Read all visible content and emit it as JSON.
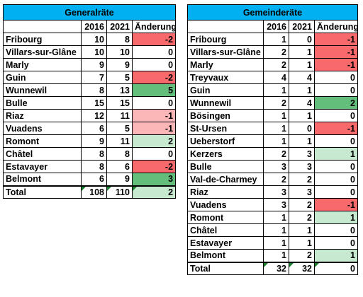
{
  "tables": [
    {
      "title": "Generalräte",
      "headers": [
        "",
        "2016",
        "2021",
        "Änderung"
      ],
      "rows": [
        {
          "name": "Fribourg",
          "y2016": "10",
          "y2021": "8",
          "change": "-2",
          "tone": "neg-strong"
        },
        {
          "name": "Villars-sur-Glâne",
          "y2016": "10",
          "y2021": "10",
          "change": "0",
          "tone": ""
        },
        {
          "name": "Marly",
          "y2016": "9",
          "y2021": "9",
          "change": "0",
          "tone": ""
        },
        {
          "name": "Guin",
          "y2016": "7",
          "y2021": "5",
          "change": "-2",
          "tone": "neg-strong"
        },
        {
          "name": "Wunnewil",
          "y2016": "8",
          "y2021": "13",
          "change": "5",
          "tone": "pos-strong"
        },
        {
          "name": "Bulle",
          "y2016": "15",
          "y2021": "15",
          "change": "0",
          "tone": ""
        },
        {
          "name": "Riaz",
          "y2016": "12",
          "y2021": "11",
          "change": "-1",
          "tone": "neg-light"
        },
        {
          "name": "Vuadens",
          "y2016": "6",
          "y2021": "5",
          "change": "-1",
          "tone": "neg-light"
        },
        {
          "name": "Romont",
          "y2016": "9",
          "y2021": "11",
          "change": "2",
          "tone": "pos-light"
        },
        {
          "name": "Châtel",
          "y2016": "8",
          "y2021": "8",
          "change": "0",
          "tone": ""
        },
        {
          "name": "Estavayer",
          "y2016": "8",
          "y2021": "6",
          "change": "-2",
          "tone": "neg-strong"
        },
        {
          "name": "Belmont",
          "y2016": "6",
          "y2021": "9",
          "change": "3",
          "tone": "pos-strong"
        }
      ],
      "total": {
        "name": "Total",
        "y2016": "108",
        "y2021": "110",
        "change": "2",
        "tone": "pos-light"
      }
    },
    {
      "title": "Gemeinderäte",
      "headers": [
        "",
        "2016",
        "2021",
        "Änderung"
      ],
      "rows": [
        {
          "name": "Fribourg",
          "y2016": "1",
          "y2021": "0",
          "change": "-1",
          "tone": "neg-strong"
        },
        {
          "name": "Villars-sur-Glâne",
          "y2016": "2",
          "y2021": "1",
          "change": "-1",
          "tone": "neg-strong"
        },
        {
          "name": "Marly",
          "y2016": "2",
          "y2021": "1",
          "change": "-1",
          "tone": "neg-strong"
        },
        {
          "name": "Treyvaux",
          "y2016": "4",
          "y2021": "4",
          "change": "0",
          "tone": ""
        },
        {
          "name": "Guin",
          "y2016": "1",
          "y2021": "1",
          "change": "0",
          "tone": ""
        },
        {
          "name": "Wunnewil",
          "y2016": "2",
          "y2021": "4",
          "change": "2",
          "tone": "pos-strong"
        },
        {
          "name": "Bösingen",
          "y2016": "1",
          "y2021": "1",
          "change": "0",
          "tone": ""
        },
        {
          "name": "St-Ursen",
          "y2016": "1",
          "y2021": "0",
          "change": "-1",
          "tone": "neg-strong"
        },
        {
          "name": "Ueberstorf",
          "y2016": "1",
          "y2021": "1",
          "change": "0",
          "tone": ""
        },
        {
          "name": "Kerzers",
          "y2016": "2",
          "y2021": "3",
          "change": "1",
          "tone": "pos-light"
        },
        {
          "name": "Bulle",
          "y2016": "3",
          "y2021": "3",
          "change": "0",
          "tone": ""
        },
        {
          "name": "Val-de-Charmey",
          "y2016": "2",
          "y2021": "2",
          "change": "0",
          "tone": ""
        },
        {
          "name": "Riaz",
          "y2016": "3",
          "y2021": "3",
          "change": "0",
          "tone": ""
        },
        {
          "name": "Vuadens",
          "y2016": "3",
          "y2021": "2",
          "change": "-1",
          "tone": "neg-strong"
        },
        {
          "name": "Romont",
          "y2016": "1",
          "y2021": "2",
          "change": "1",
          "tone": "pos-light"
        },
        {
          "name": "Châtel",
          "y2016": "1",
          "y2021": "1",
          "change": "0",
          "tone": ""
        },
        {
          "name": "Estavayer",
          "y2016": "1",
          "y2021": "1",
          "change": "0",
          "tone": ""
        },
        {
          "name": "Belmont",
          "y2016": "1",
          "y2021": "2",
          "change": "1",
          "tone": "pos-light"
        }
      ],
      "total": {
        "name": "Total",
        "y2016": "32",
        "y2021": "32",
        "change": "0",
        "tone": ""
      }
    }
  ],
  "colors": {
    "title_fill": "#00b0f0",
    "pos_strong": "#63be7b",
    "pos_light": "#c6e9d0",
    "neg_strong": "#f8696b",
    "neg_light": "#fbb6b8"
  }
}
